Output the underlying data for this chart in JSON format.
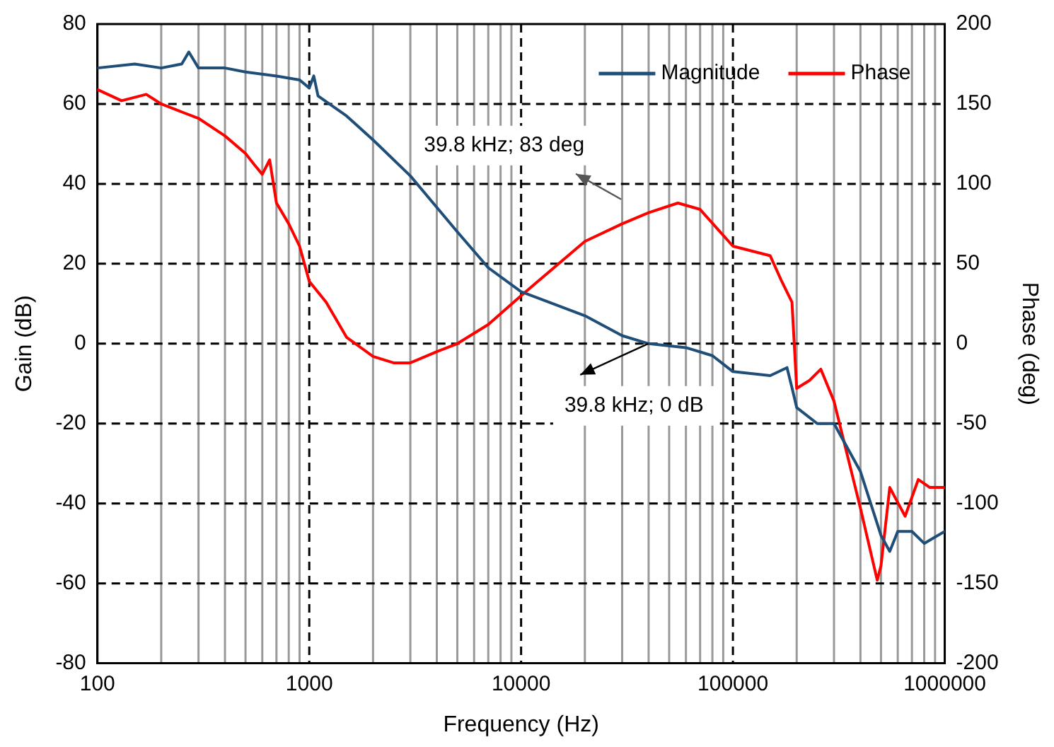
{
  "chart_data": {
    "type": "line",
    "xlabel": "Frequency (Hz)",
    "ylabel": "Gain (dB)",
    "y2label": "Phase (deg)",
    "log": "x",
    "grid": true,
    "legend": "top right",
    "marker": "none",
    "line_style": "solid",
    "xlim": [
      100,
      1000000
    ],
    "xticks": [
      100,
      1000,
      10000,
      100000,
      1000000
    ],
    "ylim": [
      -80,
      80
    ],
    "yticks": [
      -80,
      -60,
      -40,
      -20,
      0,
      20,
      40,
      60,
      80
    ],
    "y2lim": [
      -200,
      200
    ],
    "y2ticks": [
      -200,
      -150,
      -100,
      -50,
      0,
      50,
      100,
      150,
      200
    ],
    "series": [
      {
        "name": "Magnitude",
        "color": "#1f4e79",
        "x": [
          100,
          150,
          200,
          250,
          270,
          300,
          400,
          500,
          700,
          900,
          1000,
          1050,
          1100,
          1500,
          2000,
          3000,
          5000,
          7000,
          10000,
          20000,
          30000,
          40000,
          60000,
          80000,
          100000,
          150000,
          180000,
          190000,
          200000,
          250000,
          300000,
          400000,
          500000,
          550000,
          600000,
          700000,
          800000,
          1000000
        ],
        "values": [
          69,
          70,
          69,
          70,
          73,
          69,
          69,
          68,
          67,
          66,
          64,
          67,
          62,
          57,
          51,
          42,
          28,
          19,
          13,
          7,
          2,
          0,
          -1,
          -3,
          -7,
          -8,
          -6,
          -11,
          -16,
          -20,
          -20,
          -32,
          -48,
          -52,
          -47,
          -47,
          -50,
          -47
        ]
      },
      {
        "name": "Phase",
        "color": "#ff0000",
        "x": [
          100,
          130,
          170,
          200,
          250,
          300,
          400,
          500,
          550,
          600,
          650,
          700,
          800,
          900,
          1000,
          1200,
          1500,
          2000,
          2500,
          3000,
          4000,
          5000,
          7000,
          10000,
          20000,
          30000,
          40000,
          55000,
          70000,
          100000,
          150000,
          170000,
          190000,
          200000,
          230000,
          260000,
          300000,
          400000,
          480000,
          500000,
          550000,
          650000,
          750000,
          850000,
          1000000
        ],
        "values": [
          159,
          152,
          156,
          150,
          145,
          141,
          130,
          119,
          112,
          106,
          115,
          88,
          75,
          61,
          39,
          26,
          4,
          -8,
          -12,
          -12,
          -5,
          0,
          12,
          30,
          64,
          75,
          82,
          88,
          84,
          61,
          55,
          39,
          26,
          -28,
          -23,
          -16,
          -36,
          -103,
          -148,
          -139,
          -90,
          -108,
          -85,
          -90,
          -90
        ],
        "axis": "y2"
      }
    ],
    "annotations": [
      "39.8 kHz; 83 deg",
      {
        "text": "39.8 kHz; 0 dB",
        "x": 39800,
        "y": 0
      }
    ]
  }
}
